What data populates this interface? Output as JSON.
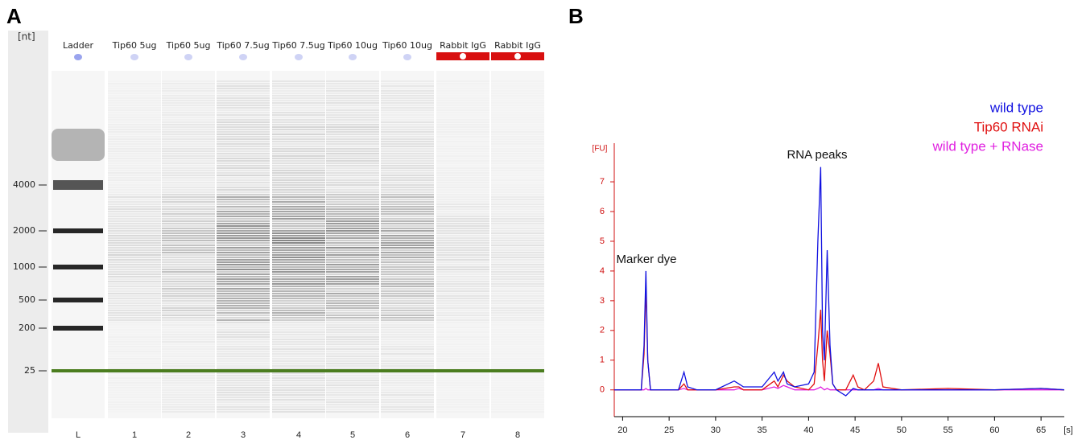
{
  "panel_labels": [
    "A",
    "B"
  ],
  "gel": {
    "unit": "[nt]",
    "lanes": [
      {
        "name": "Ladder",
        "number": "L"
      },
      {
        "name": "Tip60 5ug",
        "number": "1"
      },
      {
        "name": "Tip60 5ug",
        "number": "2"
      },
      {
        "name": "Tip60 7.5ug",
        "number": "3"
      },
      {
        "name": "Tip60 7.5ug",
        "number": "4"
      },
      {
        "name": "Tip60 10ug",
        "number": "5"
      },
      {
        "name": "Tip60 10ug",
        "number": "6"
      },
      {
        "name": "Rabbit IgG",
        "number": "7"
      },
      {
        "name": "Rabbit IgG",
        "number": "8"
      }
    ],
    "ladder_labels": [
      "4000",
      "2000",
      "1000",
      "500",
      "200",
      "25"
    ]
  },
  "chart_data": {
    "type": "line",
    "x_label": "[s]",
    "y_label": "[FU]",
    "annotations": [
      "Marker dye",
      "RNA peaks"
    ],
    "xlim": [
      19.1,
      67.5
    ],
    "ylim": [
      -0.9,
      8.3
    ],
    "xticks": [
      20,
      25,
      30,
      35,
      40,
      45,
      50,
      55,
      60,
      65
    ],
    "yticks": [
      0,
      1,
      2,
      3,
      4,
      5,
      6,
      7
    ],
    "x": [
      19.1,
      20,
      21,
      22,
      22.3,
      22.5,
      22.7,
      23,
      24,
      26,
      26.6,
      27,
      28,
      30,
      32,
      32.5,
      33,
      35,
      36.3,
      36.7,
      37.3,
      37.7,
      38.5,
      40,
      40.6,
      41,
      41.3,
      41.5,
      41.7,
      42,
      42.3,
      42.6,
      43,
      44,
      44.8,
      45.3,
      46,
      47,
      47.5,
      48,
      50,
      55,
      60,
      65,
      67.5
    ],
    "series": [
      {
        "name": "wild type + RNase",
        "color": "#e020e0",
        "values": [
          0,
          0,
          0,
          0,
          0,
          0.05,
          0,
          0,
          0,
          0,
          0.05,
          0,
          0,
          0,
          0,
          0.05,
          0,
          0,
          0.1,
          0.05,
          0.15,
          0.1,
          0,
          0,
          0,
          0.05,
          0.1,
          0.05,
          0,
          0.05,
          0,
          0,
          0,
          0,
          0,
          0,
          0,
          0,
          0.05,
          0,
          0,
          0,
          0,
          0,
          0
        ]
      },
      {
        "name": "Tip60 RNAi",
        "color": "#e01010",
        "values": [
          0,
          0,
          0,
          0,
          1.2,
          3.5,
          1.0,
          0,
          0,
          0,
          0.2,
          0,
          0,
          0,
          0.1,
          0.1,
          0,
          0,
          0.3,
          0.1,
          0.5,
          0.3,
          0.1,
          0,
          0.2,
          1.5,
          2.7,
          1.0,
          0.3,
          2.0,
          1.2,
          0.2,
          0,
          0,
          0.5,
          0.1,
          0,
          0.3,
          0.9,
          0.1,
          0,
          0.05,
          0,
          0.05,
          0
        ]
      },
      {
        "name": "wild type",
        "color": "#1010e0",
        "values": [
          0,
          0,
          0,
          0,
          1.5,
          4.0,
          1.0,
          0,
          0,
          0,
          0.6,
          0.1,
          0,
          0,
          0.3,
          0.2,
          0.1,
          0.1,
          0.6,
          0.3,
          0.6,
          0.2,
          0.1,
          0.2,
          0.6,
          5.0,
          7.5,
          2.0,
          1.0,
          4.7,
          1.5,
          0.2,
          0,
          -0.2,
          0.05,
          0,
          0,
          0,
          0,
          0,
          0,
          0,
          0,
          0.05,
          0
        ]
      }
    ]
  }
}
